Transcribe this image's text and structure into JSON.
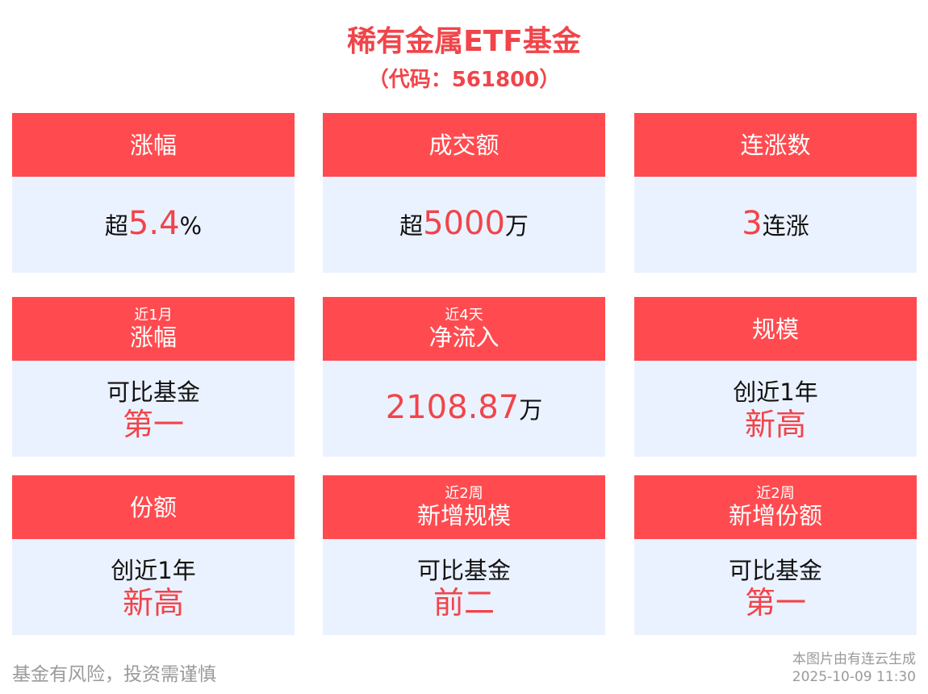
{
  "header": {
    "title": "稀有金属ETF基金",
    "subtitle": "（代码：561800）"
  },
  "colors": {
    "header_bg": "#FF4B4F",
    "body_bg": "#EBF2FF",
    "accent": "#F0454A"
  },
  "cards": [
    {
      "sub": "",
      "title": "涨幅",
      "lines": [
        [
          {
            "text": "超",
            "hl": false
          },
          {
            "text": "5.4",
            "hl": true,
            "num": true
          },
          {
            "text": "%",
            "hl": false
          }
        ]
      ]
    },
    {
      "sub": "",
      "title": "成交额",
      "lines": [
        [
          {
            "text": "超",
            "hl": false
          },
          {
            "text": "5000",
            "hl": true,
            "num": true
          },
          {
            "text": "万",
            "hl": false
          }
        ]
      ]
    },
    {
      "sub": "",
      "title": "连涨数",
      "lines": [
        [
          {
            "text": "3",
            "hl": true,
            "num": true
          },
          {
            "text": "连涨",
            "hl": false
          }
        ]
      ]
    },
    {
      "sub": "近1月",
      "title": "涨幅",
      "lines": [
        [
          {
            "text": "可比基金",
            "hl": false
          }
        ],
        [
          {
            "text": "第一",
            "hl": true,
            "big": true
          }
        ]
      ]
    },
    {
      "sub": "近4天",
      "title": "净流入",
      "lines": [
        [
          {
            "text": "2108.87",
            "hl": true,
            "num": true
          },
          {
            "text": "万",
            "hl": false
          }
        ]
      ]
    },
    {
      "sub": "",
      "title": "规模",
      "lines": [
        [
          {
            "text": "创近1年",
            "hl": false
          }
        ],
        [
          {
            "text": "新高",
            "hl": true,
            "big": true
          }
        ]
      ]
    },
    {
      "sub": "",
      "title": "份额",
      "lines": [
        [
          {
            "text": "创近1年",
            "hl": false
          }
        ],
        [
          {
            "text": "新高",
            "hl": true,
            "big": true
          }
        ]
      ]
    },
    {
      "sub": "近2周",
      "title": "新增规模",
      "lines": [
        [
          {
            "text": "可比基金",
            "hl": false
          }
        ],
        [
          {
            "text": "前二",
            "hl": true,
            "big": true
          }
        ]
      ]
    },
    {
      "sub": "近2周",
      "title": "新增份额",
      "lines": [
        [
          {
            "text": "可比基金",
            "hl": false
          }
        ],
        [
          {
            "text": "第一",
            "hl": true,
            "big": true
          }
        ]
      ]
    }
  ],
  "footer": {
    "disclaimer": "基金有风险，投资需谨慎",
    "source": "本图片由有连云生成",
    "timestamp": "2025-10-09 11:30"
  }
}
